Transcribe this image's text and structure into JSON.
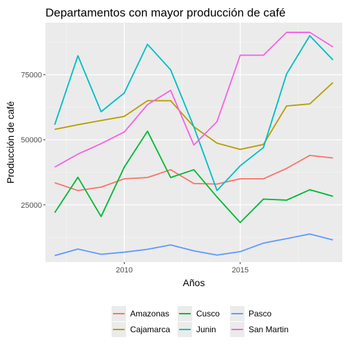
{
  "chart_data": {
    "type": "line",
    "title": "Departamentos con mayor producción de café",
    "xlabel": "Años",
    "ylabel": "Producción de café",
    "x": [
      2007,
      2008,
      2009,
      2010,
      2011,
      2012,
      2013,
      2014,
      2015,
      2016,
      2017,
      2018,
      2019
    ],
    "xlim": [
      2006.6,
      2019.4
    ],
    "ylim": [
      3000,
      95000
    ],
    "xticks": [
      2010,
      2015
    ],
    "yticks": [
      25000,
      50000,
      75000
    ],
    "xtick_labels": [
      "2010",
      "2015"
    ],
    "ytick_labels": [
      "25000",
      "50000",
      "75000"
    ],
    "grid": true,
    "legend_position": "bottom",
    "series": [
      {
        "name": "Amazonas",
        "color": "#f8766d",
        "values": [
          33500,
          30500,
          31800,
          35000,
          35500,
          38500,
          33200,
          33000,
          35000,
          35000,
          39000,
          44000,
          43000
        ]
      },
      {
        "name": "Cajamarca",
        "color": "#b79f00",
        "values": [
          54000,
          55800,
          57400,
          59000,
          65000,
          65000,
          55000,
          48700,
          46300,
          48200,
          63000,
          63800,
          72000
        ]
      },
      {
        "name": "Cusco",
        "color": "#00ba38",
        "values": [
          22000,
          35600,
          20500,
          39500,
          53300,
          35500,
          38500,
          28000,
          18200,
          27200,
          26800,
          30800,
          28300
        ]
      },
      {
        "name": "Junin",
        "color": "#00bfc4",
        "values": [
          55800,
          82300,
          60800,
          68000,
          86700,
          76900,
          55000,
          30500,
          40000,
          47000,
          75300,
          90000,
          80700
        ]
      },
      {
        "name": "Pasco",
        "color": "#619cff",
        "values": [
          5500,
          8000,
          6000,
          6800,
          7900,
          9600,
          7300,
          5700,
          7000,
          10300,
          12000,
          13800,
          11500
        ]
      },
      {
        "name": "San Martin",
        "color": "#f564e3",
        "values": [
          39500,
          44500,
          48500,
          53000,
          63500,
          69000,
          48000,
          57000,
          82500,
          82500,
          91300,
          91300,
          85700
        ]
      }
    ]
  }
}
